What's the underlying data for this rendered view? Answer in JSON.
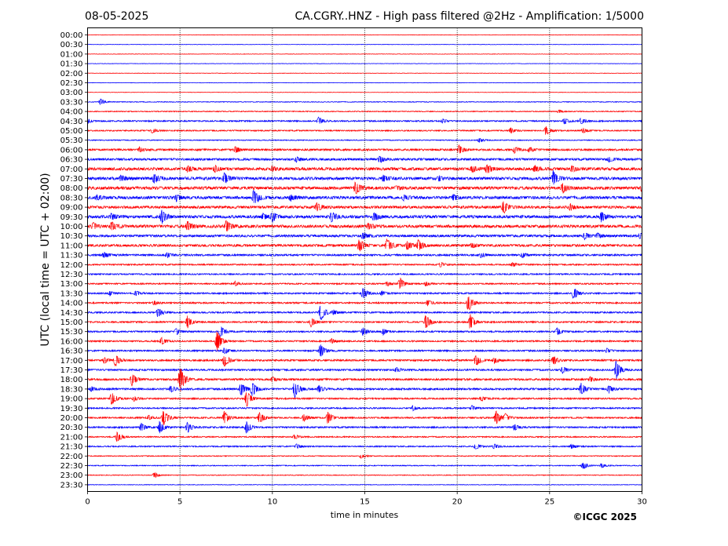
{
  "header": {
    "date": "08-05-2025",
    "title": "CA.CGRY..HNZ - High pass filtered @2Hz - Amplification: 1/5000"
  },
  "footer": {
    "credit": "©ICGC 2025"
  },
  "chart_data": {
    "type": "seismogram",
    "xlabel": "time in minutes",
    "ylabel": "UTC (local time = UTC + 02:00)",
    "xlim": [
      0,
      30
    ],
    "x_ticks": [
      0,
      5,
      10,
      15,
      20,
      25,
      30
    ],
    "vertical_gridlines_at": [
      5,
      10,
      15,
      20,
      25
    ],
    "row_labels": [
      "00:00",
      "00:30",
      "01:00",
      "01:30",
      "02:00",
      "02:30",
      "03:00",
      "03:30",
      "04:00",
      "04:30",
      "05:00",
      "05:30",
      "06:00",
      "06:30",
      "07:00",
      "07:30",
      "08:00",
      "08:30",
      "09:00",
      "09:30",
      "10:00",
      "10:30",
      "11:00",
      "11:30",
      "12:00",
      "12:30",
      "13:00",
      "13:30",
      "14:00",
      "14:30",
      "15:00",
      "15:30",
      "16:00",
      "16:30",
      "17:00",
      "17:30",
      "18:00",
      "18:30",
      "19:00",
      "19:30",
      "20:00",
      "20:30",
      "21:00",
      "21:30",
      "22:00",
      "22:30",
      "23:00",
      "23:30"
    ],
    "trace_colors": [
      "#ff0000",
      "#0000ff"
    ],
    "noise_levels": [
      0.3,
      0.3,
      0.3,
      0.3,
      0.3,
      0.3,
      0.3,
      0.5,
      0.6,
      0.9,
      0.8,
      0.6,
      1.2,
      1.4,
      1.8,
      1.8,
      1.8,
      1.8,
      1.6,
      1.8,
      1.8,
      1.5,
      1.5,
      1.2,
      0.9,
      0.9,
      0.9,
      1.0,
      1.0,
      1.0,
      1.0,
      1.0,
      1.0,
      1.0,
      1.1,
      1.1,
      1.2,
      1.2,
      1.0,
      0.9,
      1.0,
      1.0,
      0.8,
      0.8,
      0.6,
      0.6,
      0.5,
      0.4
    ],
    "events": [
      [],
      [],
      [],
      [],
      [],
      [],
      [],
      [
        [
          0.7,
          4
        ]
      ],
      [
        [
          25.5,
          2
        ]
      ],
      [
        [
          0,
          3
        ],
        [
          12.5,
          5
        ],
        [
          19.2,
          3
        ],
        [
          25.8,
          4
        ],
        [
          26.7,
          4
        ]
      ],
      [
        [
          3.5,
          3
        ],
        [
          22.9,
          4
        ],
        [
          24.8,
          7
        ],
        [
          26.8,
          3
        ]
      ],
      [
        [
          21.2,
          3
        ]
      ],
      [
        [
          2.8,
          3
        ],
        [
          8.0,
          4
        ],
        [
          20.1,
          6
        ],
        [
          23.1,
          4
        ],
        [
          23.9,
          3
        ]
      ],
      [
        [
          11.3,
          3
        ],
        [
          15.8,
          4
        ],
        [
          28.2,
          3
        ]
      ],
      [
        [
          5.4,
          4
        ],
        [
          6.9,
          4
        ],
        [
          10.0,
          3
        ],
        [
          20.8,
          4
        ],
        [
          21.6,
          6
        ],
        [
          24.2,
          4
        ],
        [
          26.2,
          4
        ]
      ],
      [
        [
          1.8,
          4
        ],
        [
          3.6,
          6
        ],
        [
          7.4,
          7
        ],
        [
          16.0,
          3
        ],
        [
          19.0,
          3
        ],
        [
          25.2,
          9
        ]
      ],
      [
        [
          14.5,
          9
        ],
        [
          16.7,
          3
        ],
        [
          25.7,
          6
        ],
        [
          30.0,
          4
        ]
      ],
      [
        [
          0.5,
          3
        ],
        [
          4.8,
          4
        ],
        [
          9.0,
          11
        ],
        [
          11.0,
          4
        ],
        [
          17.1,
          3
        ],
        [
          19.8,
          4
        ]
      ],
      [
        [
          12.4,
          6
        ],
        [
          22.5,
          9
        ],
        [
          26.1,
          4
        ]
      ],
      [
        [
          1.3,
          4
        ],
        [
          4.0,
          10
        ],
        [
          9.5,
          4
        ],
        [
          10.0,
          6
        ],
        [
          13.2,
          6
        ],
        [
          15.5,
          6
        ],
        [
          27.8,
          6
        ]
      ],
      [
        [
          0.3,
          4
        ],
        [
          1.3,
          6
        ],
        [
          5.4,
          6
        ],
        [
          7.5,
          7
        ],
        [
          15.2,
          4
        ]
      ],
      [
        [
          14.9,
          5
        ],
        [
          26.9,
          4
        ],
        [
          27.6,
          3
        ],
        [
          29.9,
          3
        ]
      ],
      [
        [
          14.7,
          9
        ],
        [
          16.2,
          10
        ],
        [
          17.3,
          6
        ],
        [
          17.9,
          8
        ],
        [
          20.8,
          3
        ]
      ],
      [
        [
          0.9,
          4
        ],
        [
          4.3,
          3
        ],
        [
          21.3,
          3
        ],
        [
          23.5,
          3
        ]
      ],
      [
        [
          19.1,
          3
        ],
        [
          23.0,
          3
        ]
      ],
      [],
      [
        [
          8.0,
          3
        ],
        [
          16.2,
          3
        ],
        [
          16.9,
          8
        ],
        [
          18.3,
          3
        ]
      ],
      [
        [
          1.2,
          3
        ],
        [
          2.6,
          3
        ],
        [
          14.9,
          8
        ],
        [
          15.9,
          3
        ],
        [
          26.3,
          8
        ]
      ],
      [
        [
          3.6,
          3
        ],
        [
          18.4,
          4
        ],
        [
          20.6,
          12
        ]
      ],
      [
        [
          3.8,
          6
        ],
        [
          12.6,
          12
        ],
        [
          13.3,
          3
        ]
      ],
      [
        [
          5.4,
          8
        ],
        [
          12.1,
          6
        ],
        [
          18.3,
          10
        ],
        [
          20.7,
          10
        ]
      ],
      [
        [
          4.8,
          4
        ],
        [
          7.2,
          7
        ],
        [
          14.9,
          5
        ],
        [
          16.0,
          4
        ],
        [
          25.4,
          5
        ]
      ],
      [
        [
          4.0,
          5
        ],
        [
          7.0,
          14
        ],
        [
          13.2,
          3
        ]
      ],
      [
        [
          7.4,
          4
        ],
        [
          12.6,
          9
        ],
        [
          28.1,
          3
        ]
      ],
      [
        [
          0.9,
          4
        ],
        [
          1.5,
          8
        ],
        [
          7.4,
          9
        ],
        [
          21.0,
          8
        ],
        [
          22.0,
          4
        ],
        [
          25.2,
          6
        ]
      ],
      [
        [
          16.7,
          3
        ],
        [
          25.7,
          4
        ],
        [
          28.6,
          12
        ]
      ],
      [
        [
          2.4,
          8
        ],
        [
          5.0,
          18
        ],
        [
          10.0,
          3
        ],
        [
          27.2,
          3
        ]
      ],
      [
        [
          0.2,
          3
        ],
        [
          4.5,
          4
        ],
        [
          8.3,
          10
        ],
        [
          8.9,
          9
        ],
        [
          11.2,
          12
        ],
        [
          12.5,
          5
        ],
        [
          26.7,
          8
        ],
        [
          28.2,
          5
        ]
      ],
      [
        [
          1.3,
          9
        ],
        [
          2.5,
          3
        ],
        [
          8.6,
          11
        ],
        [
          21.3,
          3
        ]
      ],
      [
        [
          17.6,
          3
        ],
        [
          20.8,
          3
        ]
      ],
      [
        [
          3.3,
          3
        ],
        [
          4.1,
          12
        ],
        [
          7.4,
          9
        ],
        [
          9.3,
          8
        ],
        [
          11.7,
          5
        ],
        [
          13.0,
          8
        ],
        [
          22.1,
          9
        ],
        [
          22.6,
          5
        ]
      ],
      [
        [
          2.9,
          5
        ],
        [
          3.9,
          8
        ],
        [
          5.4,
          7
        ],
        [
          8.6,
          8
        ],
        [
          23.1,
          4
        ]
      ],
      [
        [
          1.6,
          7
        ],
        [
          11.2,
          3
        ]
      ],
      [
        [
          11.3,
          3
        ],
        [
          21.0,
          4
        ],
        [
          22.0,
          3
        ],
        [
          26.2,
          3
        ]
      ],
      [
        [
          14.8,
          3
        ]
      ],
      [
        [
          26.8,
          5
        ],
        [
          27.8,
          3
        ]
      ],
      [
        [
          3.6,
          4
        ]
      ],
      []
    ]
  }
}
